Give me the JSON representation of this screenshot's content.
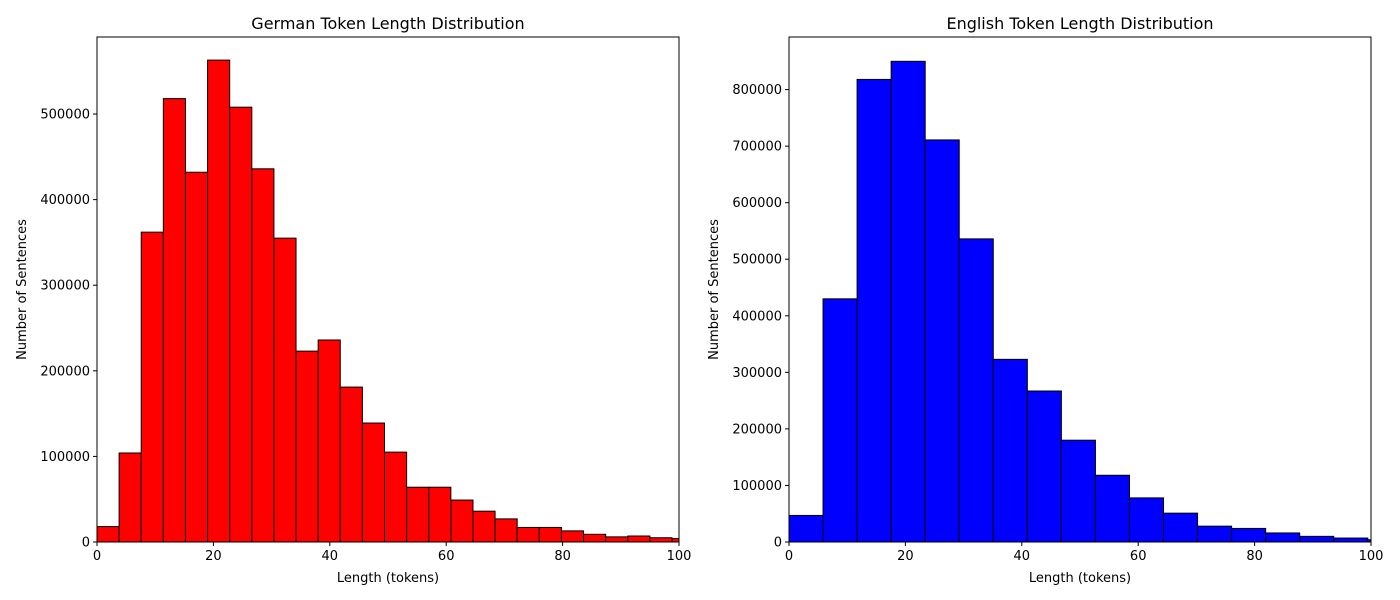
{
  "chart_data": [
    {
      "type": "bar",
      "title": "German Token Length Distribution",
      "xlabel": "Length (tokens)",
      "ylabel": "Number of Sentences",
      "xlim": [
        0,
        100
      ],
      "ylim": [
        0,
        590000
      ],
      "xticks": [
        0,
        20,
        40,
        60,
        80,
        100
      ],
      "yticks": [
        0,
        100000,
        200000,
        300000,
        400000,
        500000
      ],
      "bin_edges": [
        0,
        3.8,
        7.6,
        11.4,
        15.2,
        19.0,
        22.8,
        26.6,
        30.4,
        34.2,
        38.0,
        41.8,
        45.6,
        49.4,
        53.2,
        57.0,
        60.8,
        64.6,
        68.4,
        72.2,
        76.0,
        79.8,
        83.6,
        87.4,
        91.2,
        95.0,
        98.8,
        102.6
      ],
      "values": [
        18000,
        104000,
        362000,
        518000,
        432000,
        563000,
        508000,
        436000,
        355000,
        223000,
        236000,
        181000,
        139000,
        105000,
        64000,
        64000,
        49000,
        36000,
        27000,
        17000,
        17000,
        13000,
        9000,
        6000,
        7000,
        5000,
        4000
      ],
      "color": "#ff0000",
      "edgecolor": "#000000",
      "grid": false
    },
    {
      "type": "bar",
      "title": "English Token Length Distribution",
      "xlabel": "Length (tokens)",
      "ylabel": "Number of Sentences",
      "xlim": [
        0,
        100
      ],
      "ylim": [
        0,
        893000
      ],
      "xticks": [
        0,
        20,
        40,
        60,
        80,
        100
      ],
      "yticks": [
        0,
        100000,
        200000,
        300000,
        400000,
        500000,
        600000,
        700000,
        800000
      ],
      "bin_edges": [
        0,
        5.85,
        11.7,
        17.55,
        23.4,
        29.25,
        35.1,
        40.95,
        46.8,
        52.65,
        58.5,
        64.35,
        70.2,
        76.05,
        81.9,
        87.75,
        93.6,
        99.45,
        105.3
      ],
      "values": [
        47000,
        430000,
        818000,
        850000,
        711000,
        536000,
        323000,
        267000,
        180000,
        118000,
        78000,
        51000,
        28000,
        24000,
        16000,
        10000,
        7000,
        4000
      ],
      "color": "#0000ff",
      "edgecolor": "#000000",
      "grid": false
    }
  ]
}
